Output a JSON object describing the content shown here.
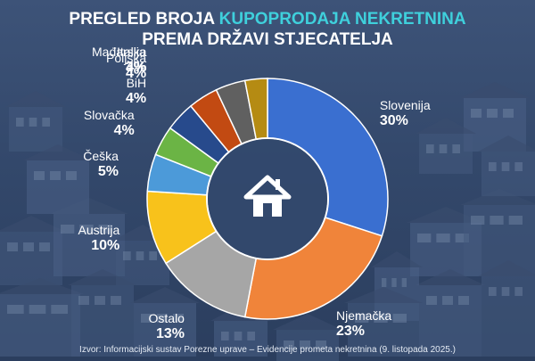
{
  "title": {
    "line1_prefix": "PREGLED BROJA ",
    "line1_accent": "KUPOPRODAJA NEKRETNINA",
    "line2": "PREMA DRŽAVI STJECATELJA"
  },
  "center_icon": "house-icon",
  "source": "Izvor: Informacijski sustav Porezne uprave – Evidencije prometa nekretnina (9. listopada 2025.)",
  "colors": {
    "title": "#ffffff",
    "accent": "#3fd0dc",
    "house": "#ffffff"
  },
  "chart_data": {
    "type": "pie",
    "variant": "donut",
    "title": "PREGLED BROJA KUPOPRODAJA NEKRETNINA PREMA DRŽAVI STJECATELJA",
    "unit": "%",
    "slices": [
      {
        "name": "Slovenija",
        "value": 30,
        "label": "30%",
        "color": "#3a6fd0"
      },
      {
        "name": "Njemačka",
        "value": 23,
        "label": "23%",
        "color": "#f0843a"
      },
      {
        "name": "Ostalo",
        "value": 13,
        "label": "13%",
        "color": "#a6a6a6"
      },
      {
        "name": "Austrija",
        "value": 10,
        "label": "10%",
        "color": "#f8c21b"
      },
      {
        "name": "Češka",
        "value": 5,
        "label": "5%",
        "color": "#4c9ad9"
      },
      {
        "name": "Slovačka",
        "value": 4,
        "label": "4%",
        "color": "#6bb445"
      },
      {
        "name": "BiH",
        "value": 4,
        "label": "4%",
        "color": "#274a8c"
      },
      {
        "name": "Poljska",
        "value": 4,
        "label": "4%",
        "color": "#c24a12"
      },
      {
        "name": "Mađarska",
        "value": 4,
        "label": "4%",
        "color": "#606060"
      },
      {
        "name": "Italija",
        "value": 3,
        "label": "3%",
        "color": "#b58b13"
      }
    ]
  }
}
